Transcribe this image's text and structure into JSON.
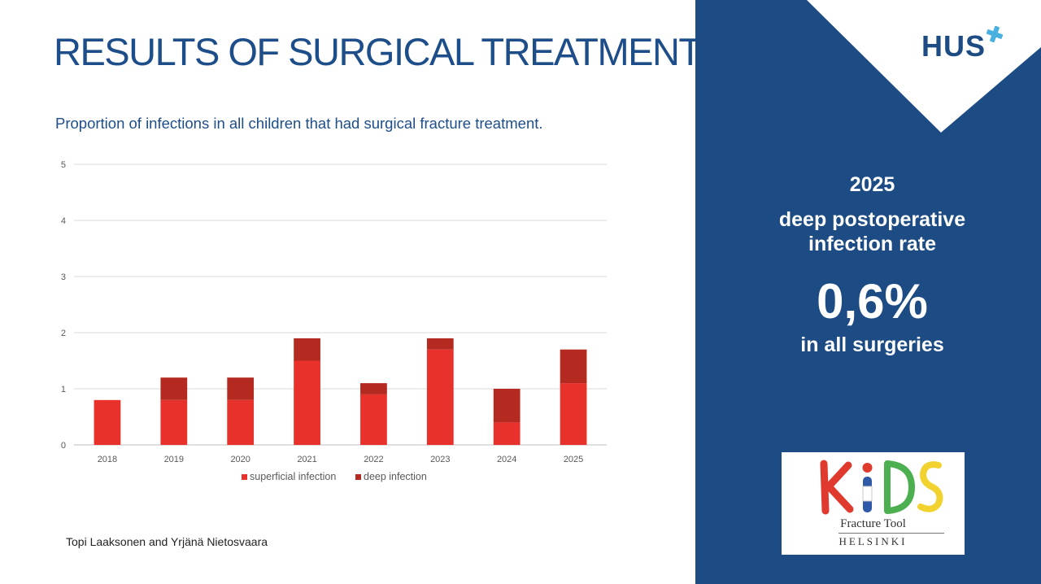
{
  "slide": {
    "title": "RESULTS OF SURGICAL TREATMENT",
    "subtitle": "Proportion of infections in all children that had surgical fracture treatment.",
    "footer": "Topi Laaksonen and Yrjänä Nietosvaara"
  },
  "sidebar": {
    "logo_text": "HUS",
    "year": "2025",
    "label_line1": "deep postoperative",
    "label_line2": "infection rate",
    "value": "0,6%",
    "footnote": "in all surgeries",
    "kids_logo": {
      "letters": [
        "K",
        "I",
        "D",
        "S"
      ],
      "tool_text": "Fracture Tool",
      "city_text": "HELSINKI"
    },
    "colors": {
      "panel": "#1d4b83",
      "cross": "#4ab0df"
    }
  },
  "chart_data": {
    "type": "bar",
    "stacked": true,
    "title": "Proportion of infections in all children that had surgical fracture treatment.",
    "xlabel": "",
    "ylabel": "",
    "categories": [
      "2018",
      "2019",
      "2020",
      "2021",
      "2022",
      "2023",
      "2024",
      "2025"
    ],
    "series": [
      {
        "name": "superficial infection",
        "values": [
          0.8,
          0.8,
          0.8,
          1.5,
          0.9,
          1.7,
          0.4,
          1.1
        ],
        "color": "#e8312a"
      },
      {
        "name": "deep infection",
        "values": [
          0,
          0.4,
          0.4,
          0.4,
          0.2,
          0.2,
          0.6,
          0.6
        ],
        "color": "#b52a20"
      }
    ],
    "ylim": [
      0,
      5
    ],
    "yticks": [
      "0",
      "1",
      "2",
      "3",
      "4",
      "5"
    ],
    "grid": true,
    "legend": "bottom"
  }
}
